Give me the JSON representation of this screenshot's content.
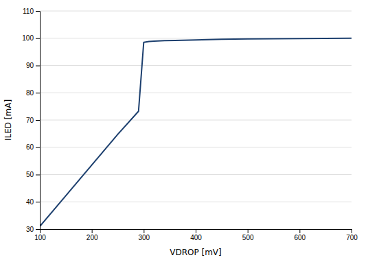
{
  "chart_data": {
    "type": "line",
    "xlabel": "VDROP [mV]",
    "ylabel": "ILED [mA]",
    "x": [
      100,
      150,
      200,
      250,
      290,
      300,
      310,
      320,
      340,
      360,
      400,
      450,
      500,
      550,
      600,
      650,
      700
    ],
    "values": [
      31.0,
      42.25,
      53.5,
      64.75,
      73.2,
      98.5,
      98.8,
      98.95,
      99.1,
      99.2,
      99.4,
      99.6,
      99.75,
      99.84,
      99.9,
      99.95,
      100.0
    ],
    "color": "#1c3f6e",
    "xlim": [
      100,
      700
    ],
    "ylim": [
      30,
      110
    ],
    "xticks": [
      100,
      200,
      300,
      400,
      500,
      600,
      700
    ],
    "yticks": [
      30,
      40,
      50,
      60,
      70,
      80,
      90,
      100,
      110
    ],
    "grid": "y"
  }
}
